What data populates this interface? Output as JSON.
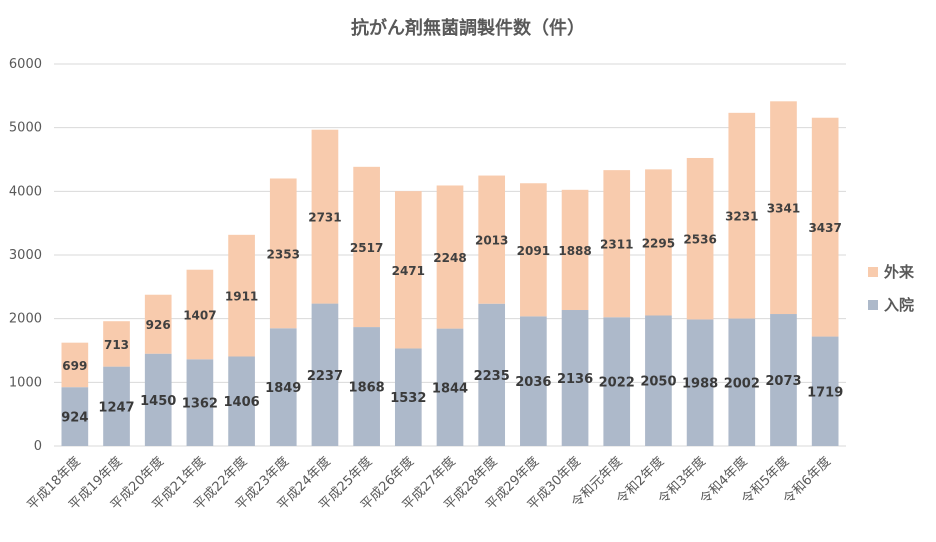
{
  "chart_data": {
    "type": "bar",
    "stacked": true,
    "title": "抗がん剤無菌調製件数（件）",
    "xlabel": "",
    "ylabel": "",
    "ylim": [
      0,
      6000
    ],
    "yticks": [
      "0",
      "1000",
      "2000",
      "3000",
      "4000",
      "5000",
      "6000"
    ],
    "grid": true,
    "legend_position": "right",
    "categories": [
      "平成18年度",
      "平成19年度",
      "平成20年度",
      "平成21年度",
      "平成22年度",
      "平成23年度",
      "平成24年度",
      "平成25年度",
      "平成26年度",
      "平成27年度",
      "平成28年度",
      "平成29年度",
      "平成30年度",
      "令和元年度",
      "令和2年度",
      "令和3年度",
      "令和4年度",
      "令和5年度",
      "令和6年度"
    ],
    "series": [
      {
        "name": "入院",
        "color": "#adb9ca",
        "values": [
          924,
          1247,
          1450,
          1362,
          1406,
          1849,
          2237,
          1868,
          1532,
          1844,
          2235,
          2036,
          2136,
          2022,
          2050,
          1988,
          2002,
          2073,
          1719
        ]
      },
      {
        "name": "外来",
        "color": "#f8cbad",
        "values": [
          699,
          713,
          926,
          1407,
          1911,
          2353,
          2731,
          2517,
          2471,
          2248,
          2013,
          2091,
          1888,
          2311,
          2295,
          2536,
          3231,
          3341,
          3437
        ]
      }
    ],
    "legend": [
      "外来",
      "入院"
    ]
  }
}
